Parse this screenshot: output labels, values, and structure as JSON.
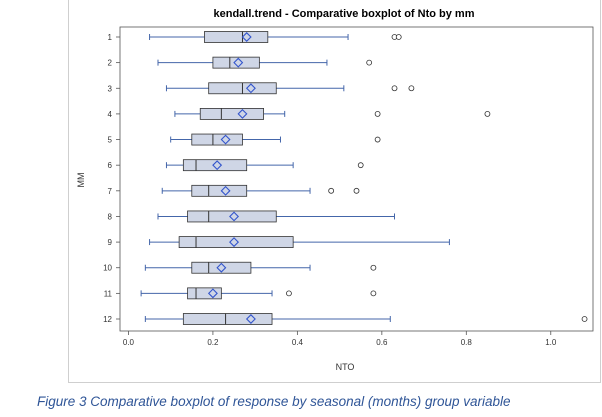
{
  "chart_data": {
    "type": "boxplot",
    "orientation": "horizontal",
    "title": "kendall.trend - Comparative boxplot of Nto  by mm",
    "xlabel": "NTO",
    "ylabel": "MM",
    "xlim": [
      -0.02,
      1.1
    ],
    "xticks": [
      "0.0",
      "0.2",
      "0.4",
      "0.6",
      "0.8",
      "1.0"
    ],
    "xtick_values": [
      0.0,
      0.2,
      0.4,
      0.6,
      0.8,
      1.0
    ],
    "categories": [
      "1",
      "2",
      "3",
      "4",
      "5",
      "6",
      "7",
      "8",
      "9",
      "10",
      "11",
      "12"
    ],
    "boxes": [
      {
        "category": "1",
        "whisker_low": 0.05,
        "q1": 0.18,
        "median": 0.27,
        "q3": 0.33,
        "whisker_high": 0.52,
        "mean": 0.28,
        "outliers": [
          0.63,
          0.64
        ]
      },
      {
        "category": "2",
        "whisker_low": 0.07,
        "q1": 0.2,
        "median": 0.24,
        "q3": 0.31,
        "whisker_high": 0.47,
        "mean": 0.26,
        "outliers": [
          0.57
        ]
      },
      {
        "category": "3",
        "whisker_low": 0.09,
        "q1": 0.19,
        "median": 0.27,
        "q3": 0.35,
        "whisker_high": 0.51,
        "mean": 0.29,
        "outliers": [
          0.63,
          0.67
        ]
      },
      {
        "category": "4",
        "whisker_low": 0.11,
        "q1": 0.17,
        "median": 0.22,
        "q3": 0.32,
        "whisker_high": 0.37,
        "mean": 0.27,
        "outliers": [
          0.59,
          0.85
        ]
      },
      {
        "category": "5",
        "whisker_low": 0.1,
        "q1": 0.15,
        "median": 0.2,
        "q3": 0.27,
        "whisker_high": 0.36,
        "mean": 0.23,
        "outliers": [
          0.59
        ]
      },
      {
        "category": "6",
        "whisker_low": 0.09,
        "q1": 0.13,
        "median": 0.16,
        "q3": 0.28,
        "whisker_high": 0.39,
        "mean": 0.21,
        "outliers": [
          0.55
        ]
      },
      {
        "category": "7",
        "whisker_low": 0.08,
        "q1": 0.15,
        "median": 0.19,
        "q3": 0.28,
        "whisker_high": 0.43,
        "mean": 0.23,
        "outliers": [
          0.48,
          0.54
        ]
      },
      {
        "category": "8",
        "whisker_low": 0.07,
        "q1": 0.14,
        "median": 0.19,
        "q3": 0.35,
        "whisker_high": 0.63,
        "mean": 0.25,
        "outliers": []
      },
      {
        "category": "9",
        "whisker_low": 0.05,
        "q1": 0.12,
        "median": 0.16,
        "q3": 0.39,
        "whisker_high": 0.76,
        "mean": 0.25,
        "outliers": []
      },
      {
        "category": "10",
        "whisker_low": 0.04,
        "q1": 0.15,
        "median": 0.19,
        "q3": 0.29,
        "whisker_high": 0.43,
        "mean": 0.22,
        "outliers": [
          0.58
        ]
      },
      {
        "category": "11",
        "whisker_low": 0.03,
        "q1": 0.14,
        "median": 0.16,
        "q3": 0.22,
        "whisker_high": 0.34,
        "mean": 0.2,
        "outliers": [
          0.38,
          0.58
        ]
      },
      {
        "category": "12",
        "whisker_low": 0.04,
        "q1": 0.13,
        "median": 0.23,
        "q3": 0.34,
        "whisker_high": 0.62,
        "mean": 0.29,
        "outliers": [
          1.08
        ]
      }
    ],
    "colors": {
      "box_fill": "#cfd6e6",
      "box_stroke": "#333333",
      "whisker": "#4466aa",
      "mean_marker": "#3355cc",
      "outlier": "#333333"
    },
    "grid": false,
    "legend": "none"
  },
  "caption": "Figure 3 Comparative boxplot of response by seasonal (months) group variable"
}
